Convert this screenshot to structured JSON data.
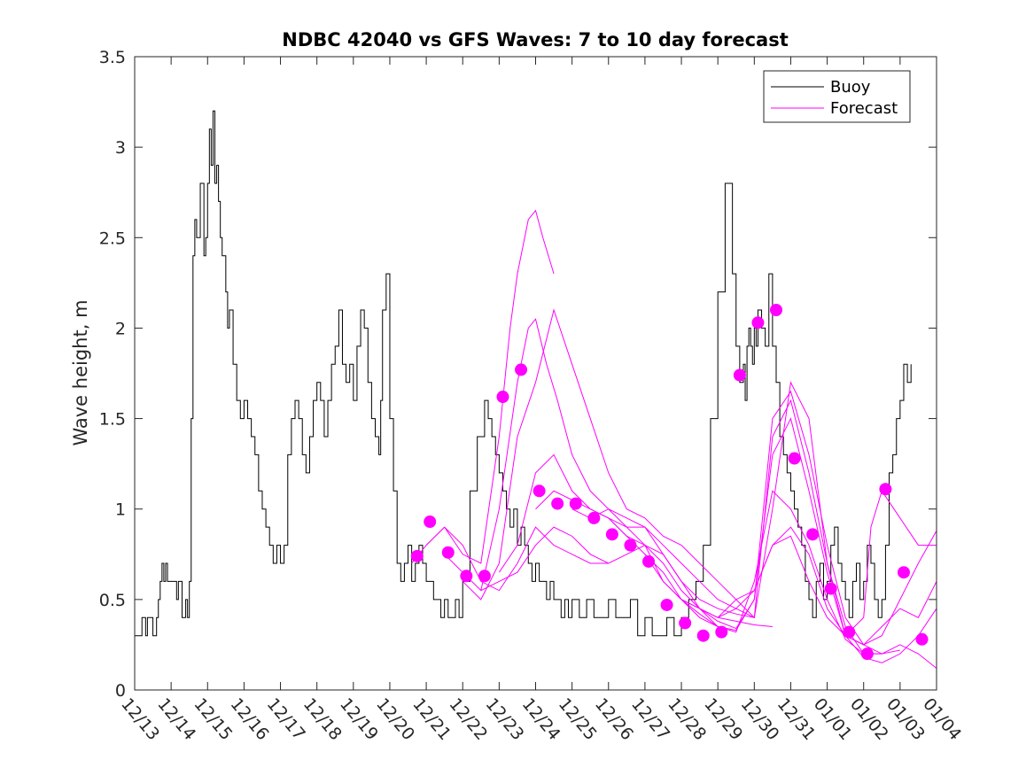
{
  "chart_data": {
    "type": "line",
    "title": "NDBC 42040 vs GFS Waves: 7 to 10 day forecast",
    "xlabel": "",
    "ylabel": "Wave height, m",
    "xlim": [
      0,
      22
    ],
    "ylim": [
      0,
      3.5
    ],
    "grid": false,
    "legend_position": "top-right",
    "x_tick_labels": [
      "12/13",
      "12/14",
      "12/15",
      "12/16",
      "12/17",
      "12/18",
      "12/19",
      "12/20",
      "12/21",
      "12/22",
      "12/23",
      "12/24",
      "12/25",
      "12/26",
      "12/27",
      "12/28",
      "12/29",
      "12/30",
      "12/31",
      "01/01",
      "01/02",
      "01/03",
      "01/04"
    ],
    "y_ticks": [
      0,
      0.5,
      1,
      1.5,
      2,
      2.5,
      3,
      3.5
    ],
    "y_tick_labels": [
      "0",
      "0.5",
      "1",
      "1.5",
      "2",
      "2.5",
      "3",
      "3.5"
    ],
    "colors": {
      "buoy": "#000000",
      "forecast": "#ff00ff"
    },
    "series": [
      {
        "name": "Buoy",
        "style": "line",
        "x": [
          0,
          0.15,
          0.2,
          0.3,
          0.35,
          0.5,
          0.6,
          0.65,
          0.7,
          0.75,
          0.8,
          0.85,
          0.9,
          1,
          1.1,
          1.15,
          1.2,
          1.3,
          1.4,
          1.45,
          1.5,
          1.55,
          1.6,
          1.65,
          1.7,
          1.8,
          1.9,
          1.95,
          2,
          2.05,
          2.1,
          2.15,
          2.2,
          2.25,
          2.3,
          2.35,
          2.4,
          2.5,
          2.55,
          2.6,
          2.7,
          2.8,
          2.9,
          3,
          3.1,
          3.2,
          3.3,
          3.4,
          3.5,
          3.6,
          3.7,
          3.8,
          3.9,
          4,
          4.1,
          4.2,
          4.3,
          4.4,
          4.5,
          4.6,
          4.7,
          4.8,
          4.9,
          5,
          5.1,
          5.2,
          5.3,
          5.4,
          5.5,
          5.6,
          5.7,
          5.8,
          5.9,
          6,
          6.1,
          6.2,
          6.3,
          6.4,
          6.5,
          6.6,
          6.7,
          6.75,
          6.8,
          6.9,
          7,
          7.1,
          7.2,
          7.3,
          7.4,
          7.5,
          7.6,
          7.7,
          7.8,
          7.9,
          8,
          8.2,
          8.4,
          8.5,
          8.6,
          8.7,
          8.8,
          8.9,
          9,
          9.2,
          9.4,
          9.6,
          9.7,
          9.8,
          9.9,
          10,
          10.1,
          10.2,
          10.3,
          10.4,
          10.5,
          10.6,
          10.7,
          10.8,
          10.9,
          11,
          11.1,
          11.2,
          11.3,
          11.4,
          11.5,
          11.6,
          11.7,
          11.8,
          11.9,
          12,
          12.2,
          12.4,
          12.6,
          12.8,
          13,
          13.2,
          13.4,
          13.6,
          13.8,
          14,
          14.2,
          14.4,
          14.6,
          14.8,
          15,
          15.2,
          15.4,
          15.6,
          15.8,
          16,
          16.2,
          16.4,
          16.5,
          16.6,
          16.7,
          16.75,
          16.8,
          16.85,
          16.9,
          16.95,
          17,
          17.05,
          17.1,
          17.2,
          17.3,
          17.4,
          17.5,
          17.6,
          17.7,
          17.8,
          17.9,
          18,
          18.1,
          18.2,
          18.3,
          18.4,
          18.5,
          18.6,
          18.7,
          18.8,
          18.9,
          19,
          19.1,
          19.2,
          19.3,
          19.4,
          19.5,
          19.6,
          19.7,
          19.8,
          19.9,
          20,
          20.1,
          20.2,
          20.3,
          20.4,
          20.5,
          20.6,
          20.7,
          20.8,
          20.9,
          21,
          21.1,
          21.2,
          21.3
        ],
        "values": [
          0.3,
          0.3,
          0.4,
          0.3,
          0.4,
          0.3,
          0.4,
          0.5,
          0.6,
          0.7,
          0.6,
          0.7,
          0.6,
          0.6,
          0.6,
          0.5,
          0.6,
          0.4,
          0.5,
          0.4,
          0.6,
          1.5,
          2.4,
          2.6,
          2.5,
          2.8,
          2.4,
          2.5,
          2.8,
          3.1,
          2.9,
          3.2,
          2.8,
          2.9,
          2.7,
          2.5,
          2.4,
          2.2,
          2.0,
          2.1,
          1.8,
          1.6,
          1.5,
          1.6,
          1.5,
          1.4,
          1.3,
          1.1,
          1.0,
          0.9,
          0.8,
          0.7,
          0.8,
          0.7,
          0.8,
          1.3,
          1.5,
          1.6,
          1.5,
          1.3,
          1.2,
          1.4,
          1.6,
          1.7,
          1.6,
          1.4,
          1.6,
          1.8,
          1.9,
          2.1,
          1.8,
          1.7,
          1.8,
          1.6,
          1.9,
          2.1,
          2.0,
          1.7,
          1.5,
          1.4,
          1.3,
          1.6,
          2.1,
          2.3,
          1.5,
          1.1,
          0.7,
          0.6,
          0.7,
          0.8,
          0.6,
          0.7,
          0.8,
          0.7,
          0.6,
          0.5,
          0.4,
          0.5,
          0.4,
          0.4,
          0.5,
          0.4,
          0.6,
          1.1,
          1.4,
          1.6,
          1.5,
          1.4,
          1.3,
          1.2,
          1.1,
          1.0,
          0.9,
          1.0,
          0.8,
          0.9,
          0.8,
          0.7,
          0.6,
          0.7,
          0.6,
          0.6,
          0.5,
          0.6,
          0.5,
          0.5,
          0.4,
          0.5,
          0.4,
          0.5,
          0.4,
          0.5,
          0.4,
          0.4,
          0.5,
          0.4,
          0.4,
          0.5,
          0.3,
          0.4,
          0.3,
          0.3,
          0.4,
          0.3,
          0.4,
          0.5,
          0.6,
          0.8,
          1.5,
          2.2,
          2.8,
          2.3,
          1.9,
          1.7,
          1.8,
          1.6,
          1.9,
          2.0,
          1.9,
          1.8,
          2.0,
          1.9,
          2.1,
          2.0,
          1.9,
          2.3,
          1.9,
          1.7,
          1.4,
          1.3,
          1.2,
          1.1,
          1.0,
          0.9,
          0.8,
          0.6,
          0.5,
          0.4,
          0.6,
          0.7,
          0.5,
          0.6,
          0.8,
          0.9,
          0.7,
          0.6,
          0.5,
          0.4,
          0.6,
          0.7,
          0.5,
          0.6,
          0.8,
          0.7,
          0.5,
          0.4,
          0.5,
          0.8,
          1.2,
          1.3,
          1.5,
          1.6,
          1.8,
          1.7,
          1.8
        ]
      },
      {
        "name": "Forecast",
        "style": "line",
        "x": [
          7.6,
          8,
          8.5,
          9,
          9.5,
          10,
          10.5,
          11,
          11.5,
          12,
          12.5,
          13
        ],
        "values": [
          0.7,
          0.8,
          0.9,
          0.8,
          0.6,
          0.55,
          0.7,
          0.9,
          0.8,
          0.75,
          0.7,
          0.7
        ]
      },
      {
        "name": "Forecast",
        "style": "line",
        "x": [
          8,
          8.5,
          9,
          9.5,
          10,
          10.3,
          10.5,
          10.8,
          11,
          11.2,
          11.5
        ],
        "values": [
          0.8,
          0.9,
          0.75,
          0.7,
          1.4,
          2.0,
          2.3,
          2.6,
          2.65,
          2.5,
          2.3
        ]
      },
      {
        "name": "Forecast",
        "style": "line",
        "x": [
          8.5,
          9,
          9.5,
          10,
          10.5,
          10.8,
          11,
          11.3,
          11.6,
          12,
          12.5,
          13,
          13.5,
          14,
          14.5,
          15,
          15.5,
          16
        ],
        "values": [
          0.75,
          0.65,
          0.55,
          1.0,
          1.7,
          2.0,
          2.05,
          1.8,
          1.6,
          1.3,
          1.1,
          1.0,
          0.95,
          0.9,
          0.75,
          0.6,
          0.45,
          0.35
        ]
      },
      {
        "name": "Forecast",
        "style": "line",
        "x": [
          9,
          9.5,
          10,
          10.5,
          11,
          11.5,
          12,
          12.5,
          13,
          13.5,
          14,
          14.5,
          15,
          15.5,
          16,
          16.5,
          17
        ],
        "values": [
          0.6,
          0.5,
          0.7,
          1.4,
          1.7,
          2.1,
          1.8,
          1.5,
          1.2,
          1.0,
          0.95,
          0.85,
          0.8,
          0.7,
          0.6,
          0.5,
          0.4
        ]
      },
      {
        "name": "Forecast",
        "style": "line",
        "x": [
          9.5,
          10,
          10.5,
          11,
          11.5,
          12,
          12.5,
          13,
          13.5,
          14,
          14.5,
          15,
          15.5,
          16,
          16.5,
          17,
          17.5
        ],
        "values": [
          0.55,
          0.6,
          0.65,
          0.8,
          0.9,
          0.85,
          0.75,
          0.7,
          0.75,
          0.8,
          0.6,
          0.5,
          0.45,
          0.4,
          0.38,
          0.36,
          0.35
        ]
      },
      {
        "name": "Forecast",
        "style": "line",
        "x": [
          10,
          10.5,
          11,
          11.5,
          12,
          12.5,
          13,
          13.5,
          14,
          14.5,
          15,
          15.5,
          16,
          16.5,
          17,
          17.5,
          18,
          18.5,
          19,
          19.5,
          20
        ],
        "values": [
          0.65,
          0.8,
          1.2,
          1.3,
          1.1,
          1.0,
          0.95,
          0.9,
          0.9,
          0.8,
          0.7,
          0.6,
          0.5,
          0.45,
          0.4,
          1.0,
          1.7,
          1.5,
          0.7,
          0.3,
          0.25
        ]
      },
      {
        "name": "Forecast",
        "style": "line",
        "x": [
          11,
          11.5,
          12,
          12.5,
          13,
          13.5,
          14,
          14.5,
          15,
          15.5,
          16,
          16.5,
          17,
          17.5,
          18,
          18.5,
          19,
          19.5,
          20,
          20.5
        ],
        "values": [
          1.0,
          1.1,
          1.05,
          1.0,
          0.95,
          0.85,
          0.8,
          0.75,
          0.6,
          0.5,
          0.45,
          0.42,
          0.4,
          1.4,
          1.6,
          1.2,
          0.7,
          0.35,
          0.2,
          0.2
        ]
      },
      {
        "name": "Forecast",
        "style": "line",
        "x": [
          12,
          12.5,
          13,
          13.5,
          14,
          14.5,
          15,
          15.5,
          16,
          16.5,
          17,
          17.5,
          18,
          18.5,
          19,
          19.5,
          20,
          20.5,
          21
        ],
        "values": [
          1.0,
          0.95,
          1.0,
          0.9,
          0.8,
          0.7,
          0.55,
          0.45,
          0.38,
          0.34,
          0.5,
          1.5,
          1.65,
          1.3,
          0.8,
          0.4,
          0.25,
          0.2,
          0.22
        ]
      },
      {
        "name": "Forecast",
        "style": "line",
        "x": [
          13,
          13.5,
          14,
          14.5,
          15,
          15.5,
          16,
          16.5,
          17,
          17.5,
          18,
          18.5,
          19,
          19.5,
          20,
          20.5,
          21,
          21.5,
          22
        ],
        "values": [
          0.95,
          0.85,
          0.75,
          0.65,
          0.5,
          0.42,
          0.35,
          0.33,
          0.5,
          1.3,
          1.5,
          1.1,
          0.65,
          0.3,
          0.18,
          0.15,
          0.2,
          0.3,
          0.45
        ]
      },
      {
        "name": "Forecast",
        "style": "line",
        "x": [
          14,
          14.5,
          15,
          15.5,
          16,
          16.5,
          17,
          17.5,
          18,
          18.5,
          19,
          19.5,
          20,
          20.5,
          21,
          21.5,
          22
        ],
        "values": [
          0.75,
          0.6,
          0.5,
          0.4,
          0.35,
          0.32,
          0.6,
          1.1,
          1.0,
          0.8,
          0.5,
          0.28,
          0.2,
          0.2,
          0.25,
          0.2,
          0.12
        ]
      },
      {
        "name": "Forecast",
        "style": "line",
        "x": [
          15,
          15.5,
          16,
          16.5,
          17,
          17.5,
          18,
          18.5,
          19,
          19.5,
          20,
          20.5,
          21,
          21.5,
          22
        ],
        "values": [
          0.5,
          0.45,
          0.4,
          0.45,
          0.55,
          0.8,
          0.9,
          0.75,
          0.45,
          0.3,
          0.25,
          0.35,
          0.45,
          0.4,
          0.6
        ]
      },
      {
        "name": "Forecast",
        "style": "line",
        "x": [
          16,
          16.5,
          17,
          17.5,
          18,
          18.5,
          19,
          19.5,
          20,
          20.5,
          21,
          21.5,
          22
        ],
        "values": [
          0.4,
          0.5,
          0.55,
          0.8,
          0.85,
          0.6,
          0.4,
          0.3,
          0.25,
          0.3,
          0.5,
          0.7,
          0.88
        ]
      },
      {
        "name": "Forecast",
        "style": "line",
        "x": [
          19.5,
          20,
          20.2,
          20.5,
          21,
          21.5,
          22
        ],
        "values": [
          0.3,
          0.4,
          0.9,
          1.1,
          0.95,
          0.8,
          0.8
        ]
      },
      {
        "name": "Forecast points",
        "style": "markers",
        "x": [
          7.75,
          8.1,
          8.6,
          9.1,
          9.6,
          10.1,
          10.6,
          11.1,
          11.6,
          12.1,
          12.6,
          13.1,
          13.6,
          14.1,
          14.6,
          15.1,
          15.6,
          16.1,
          16.6,
          17.1,
          17.6,
          18.1,
          18.6,
          19.1,
          19.6,
          20.1,
          20.6,
          21.1,
          21.6
        ],
        "values": [
          0.74,
          0.93,
          0.76,
          0.63,
          0.63,
          1.62,
          1.77,
          1.1,
          1.03,
          1.03,
          0.95,
          0.86,
          0.8,
          0.71,
          0.47,
          0.37,
          0.3,
          0.32,
          1.74,
          2.03,
          2.1,
          1.28,
          0.86,
          0.56,
          0.32,
          0.2,
          1.11,
          0.65,
          0.28
        ]
      }
    ],
    "legend": [
      "Buoy",
      "Forecast"
    ]
  }
}
